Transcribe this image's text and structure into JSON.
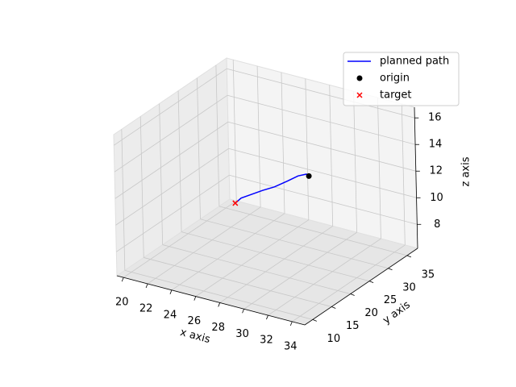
{
  "chart_data": {
    "type": "line3d",
    "xlabel": "x axis",
    "ylabel": "y axis",
    "zlabel": "z axis",
    "xlim": [
      19.45,
      35.05
    ],
    "ylim": [
      7.9,
      37.8
    ],
    "zlim": [
      6.2,
      16.8
    ],
    "xticks": [
      20,
      22,
      24,
      26,
      28,
      30,
      32,
      34
    ],
    "yticks": [
      10,
      15,
      20,
      25,
      30,
      35
    ],
    "zticks": [
      8,
      10,
      12,
      14,
      16
    ],
    "grid": true,
    "legend": "upper right",
    "series": [
      {
        "name": "planned path",
        "kind": "line",
        "color": "#0000ff",
        "x": [
          28.6,
          28.4,
          27.7,
          26.8,
          25.7,
          24.7,
          23.8,
          22.9,
          22.4
        ],
        "y": [
          30,
          30,
          30,
          30,
          30,
          30,
          30,
          30,
          30
        ],
        "z": [
          11.6,
          11.7,
          11.4,
          10.8,
          10.1,
          9.6,
          9.1,
          8.6,
          8.1
        ]
      },
      {
        "name": "origin",
        "kind": "dot",
        "color": "#000000",
        "x": [
          28.6
        ],
        "y": [
          30
        ],
        "z": [
          11.6
        ]
      },
      {
        "name": "target",
        "kind": "cross",
        "color": "#ff0000",
        "x": [
          22.4
        ],
        "y": [
          30
        ],
        "z": [
          8.1
        ]
      }
    ]
  }
}
